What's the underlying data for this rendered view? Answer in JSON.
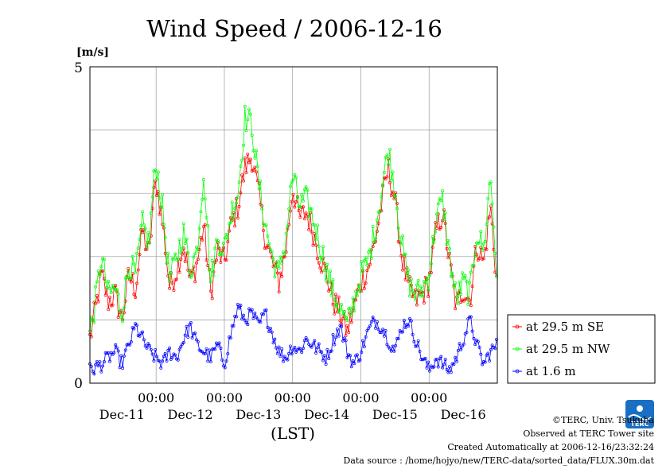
{
  "chart_data": {
    "type": "line",
    "title": "Wind Speed / 2006-12-16",
    "ylabel": "[m/s]",
    "xlabel": "(LST)",
    "ylim": [
      0,
      5
    ],
    "yticks": [
      0,
      5
    ],
    "xlim_days": [
      -0.97,
      5.0
    ],
    "x_day_ticks": [
      "00:00",
      "00:00",
      "00:00",
      "00:00",
      "00:00"
    ],
    "x_day_labels": [
      "Dec-11",
      "Dec-12",
      "Dec-13",
      "Dec-14",
      "Dec-15",
      "Dec-16"
    ],
    "grid": true,
    "legend_position": "right",
    "series": [
      {
        "name": "at 29.5 m SE",
        "color": "#ff0000",
        "keypoints": [
          [
            -0.97,
            0.7
          ],
          [
            -0.9,
            1.1
          ],
          [
            -0.8,
            1.7
          ],
          [
            -0.7,
            1.3
          ],
          [
            -0.6,
            1.4
          ],
          [
            -0.5,
            1.0
          ],
          [
            -0.4,
            1.7
          ],
          [
            -0.3,
            1.5
          ],
          [
            -0.2,
            2.4
          ],
          [
            -0.1,
            2.0
          ],
          [
            -0.05,
            2.8
          ],
          [
            0.0,
            3.2
          ],
          [
            0.1,
            2.5
          ],
          [
            0.2,
            1.5
          ],
          [
            0.3,
            1.8
          ],
          [
            0.4,
            2.2
          ],
          [
            0.5,
            1.6
          ],
          [
            0.6,
            1.9
          ],
          [
            0.7,
            2.5
          ],
          [
            0.8,
            1.4
          ],
          [
            0.9,
            2.1
          ],
          [
            1.0,
            1.9
          ],
          [
            1.1,
            2.5
          ],
          [
            1.2,
            2.8
          ],
          [
            1.3,
            3.4
          ],
          [
            1.4,
            3.6
          ],
          [
            1.5,
            3.0
          ],
          [
            1.6,
            2.3
          ],
          [
            1.7,
            1.9
          ],
          [
            1.8,
            1.6
          ],
          [
            1.9,
            2.1
          ],
          [
            2.0,
            3.1
          ],
          [
            2.1,
            2.6
          ],
          [
            2.2,
            2.7
          ],
          [
            2.3,
            2.4
          ],
          [
            2.4,
            2.0
          ],
          [
            2.5,
            1.7
          ],
          [
            2.6,
            1.3
          ],
          [
            2.7,
            1.1
          ],
          [
            2.8,
            0.8
          ],
          [
            2.9,
            1.2
          ],
          [
            3.0,
            1.6
          ],
          [
            3.1,
            1.8
          ],
          [
            3.2,
            2.2
          ],
          [
            3.3,
            2.8
          ],
          [
            3.4,
            3.4
          ],
          [
            3.5,
            2.9
          ],
          [
            3.6,
            2.0
          ],
          [
            3.7,
            1.5
          ],
          [
            3.8,
            1.3
          ],
          [
            3.9,
            1.4
          ],
          [
            4.0,
            1.6
          ],
          [
            4.1,
            2.4
          ],
          [
            4.2,
            2.7
          ],
          [
            4.3,
            1.9
          ],
          [
            4.4,
            1.2
          ],
          [
            4.5,
            1.5
          ],
          [
            4.6,
            1.3
          ],
          [
            4.7,
            2.2
          ],
          [
            4.8,
            1.9
          ],
          [
            4.9,
            2.8
          ],
          [
            5.0,
            1.5
          ]
        ]
      },
      {
        "name": "at 29.5 m NW",
        "color": "#00ff00",
        "keypoints": [
          [
            -0.97,
            0.8
          ],
          [
            -0.9,
            1.2
          ],
          [
            -0.8,
            2.0
          ],
          [
            -0.7,
            1.4
          ],
          [
            -0.6,
            1.5
          ],
          [
            -0.5,
            1.1
          ],
          [
            -0.4,
            1.9
          ],
          [
            -0.3,
            1.7
          ],
          [
            -0.2,
            2.5
          ],
          [
            -0.1,
            2.2
          ],
          [
            -0.05,
            3.0
          ],
          [
            0.0,
            3.5
          ],
          [
            0.1,
            2.7
          ],
          [
            0.2,
            1.6
          ],
          [
            0.3,
            2.0
          ],
          [
            0.4,
            2.4
          ],
          [
            0.5,
            1.8
          ],
          [
            0.6,
            2.1
          ],
          [
            0.7,
            3.4
          ],
          [
            0.8,
            1.6
          ],
          [
            0.9,
            2.3
          ],
          [
            1.0,
            2.1
          ],
          [
            1.1,
            2.7
          ],
          [
            1.2,
            3.0
          ],
          [
            1.3,
            4.2
          ],
          [
            1.4,
            4.1
          ],
          [
            1.5,
            3.2
          ],
          [
            1.6,
            2.5
          ],
          [
            1.7,
            2.0
          ],
          [
            1.8,
            1.7
          ],
          [
            1.9,
            2.3
          ],
          [
            2.0,
            3.3
          ],
          [
            2.1,
            2.8
          ],
          [
            2.2,
            2.9
          ],
          [
            2.3,
            2.6
          ],
          [
            2.4,
            2.2
          ],
          [
            2.5,
            1.8
          ],
          [
            2.6,
            1.4
          ],
          [
            2.7,
            1.2
          ],
          [
            2.8,
            0.9
          ],
          [
            2.9,
            1.3
          ],
          [
            3.0,
            1.7
          ],
          [
            3.1,
            1.9
          ],
          [
            3.2,
            2.4
          ],
          [
            3.3,
            3.0
          ],
          [
            3.4,
            3.7
          ],
          [
            3.5,
            3.1
          ],
          [
            3.6,
            2.2
          ],
          [
            3.7,
            1.6
          ],
          [
            3.8,
            1.4
          ],
          [
            3.9,
            1.5
          ],
          [
            4.0,
            1.7
          ],
          [
            4.1,
            2.6
          ],
          [
            4.2,
            2.9
          ],
          [
            4.3,
            2.0
          ],
          [
            4.4,
            1.3
          ],
          [
            4.5,
            1.6
          ],
          [
            4.6,
            1.4
          ],
          [
            4.7,
            2.4
          ],
          [
            4.8,
            2.1
          ],
          [
            4.9,
            3.3
          ],
          [
            5.0,
            1.6
          ]
        ]
      },
      {
        "name": "at 1.6 m",
        "color": "#0000ff",
        "keypoints": [
          [
            -0.97,
            0.2
          ],
          [
            -0.8,
            0.3
          ],
          [
            -0.6,
            0.5
          ],
          [
            -0.5,
            0.3
          ],
          [
            -0.4,
            0.6
          ],
          [
            -0.3,
            0.9
          ],
          [
            -0.2,
            0.7
          ],
          [
            -0.1,
            0.5
          ],
          [
            0.0,
            0.4
          ],
          [
            0.1,
            0.3
          ],
          [
            0.2,
            0.5
          ],
          [
            0.3,
            0.4
          ],
          [
            0.4,
            0.7
          ],
          [
            0.5,
            0.9
          ],
          [
            0.6,
            0.6
          ],
          [
            0.7,
            0.5
          ],
          [
            0.8,
            0.4
          ],
          [
            0.9,
            0.6
          ],
          [
            1.0,
            0.3
          ],
          [
            1.1,
            0.8
          ],
          [
            1.2,
            1.2
          ],
          [
            1.3,
            1.0
          ],
          [
            1.4,
            1.1
          ],
          [
            1.5,
            0.9
          ],
          [
            1.6,
            1.1
          ],
          [
            1.7,
            0.8
          ],
          [
            1.8,
            0.5
          ],
          [
            1.9,
            0.4
          ],
          [
            2.0,
            0.6
          ],
          [
            2.1,
            0.5
          ],
          [
            2.2,
            0.7
          ],
          [
            2.3,
            0.6
          ],
          [
            2.4,
            0.5
          ],
          [
            2.5,
            0.4
          ],
          [
            2.6,
            0.7
          ],
          [
            2.7,
            0.9
          ],
          [
            2.8,
            0.5
          ],
          [
            2.9,
            0.3
          ],
          [
            3.0,
            0.5
          ],
          [
            3.1,
            0.8
          ],
          [
            3.2,
            1.0
          ],
          [
            3.3,
            0.9
          ],
          [
            3.4,
            0.7
          ],
          [
            3.5,
            0.5
          ],
          [
            3.6,
            0.9
          ],
          [
            3.7,
            1.0
          ],
          [
            3.8,
            0.7
          ],
          [
            3.9,
            0.4
          ],
          [
            4.0,
            0.2
          ],
          [
            4.1,
            0.4
          ],
          [
            4.2,
            0.3
          ],
          [
            4.3,
            0.2
          ],
          [
            4.4,
            0.4
          ],
          [
            4.5,
            0.7
          ],
          [
            4.6,
            1.0
          ],
          [
            4.7,
            0.6
          ],
          [
            4.8,
            0.3
          ],
          [
            4.9,
            0.5
          ],
          [
            5.0,
            0.6
          ]
        ]
      }
    ]
  },
  "credits": {
    "copyright": "©TERC, Univ. Tsukuba",
    "observed": "Observed at TERC Tower site",
    "created": "Created Automatically at 2006-12-16/23:32:24",
    "source": "Data source : /home/hojyo/new/TERC-data/sorted_data/FLUX.30m.dat"
  },
  "logo": {
    "text": "TERC",
    "color": "#1a6fc4"
  }
}
